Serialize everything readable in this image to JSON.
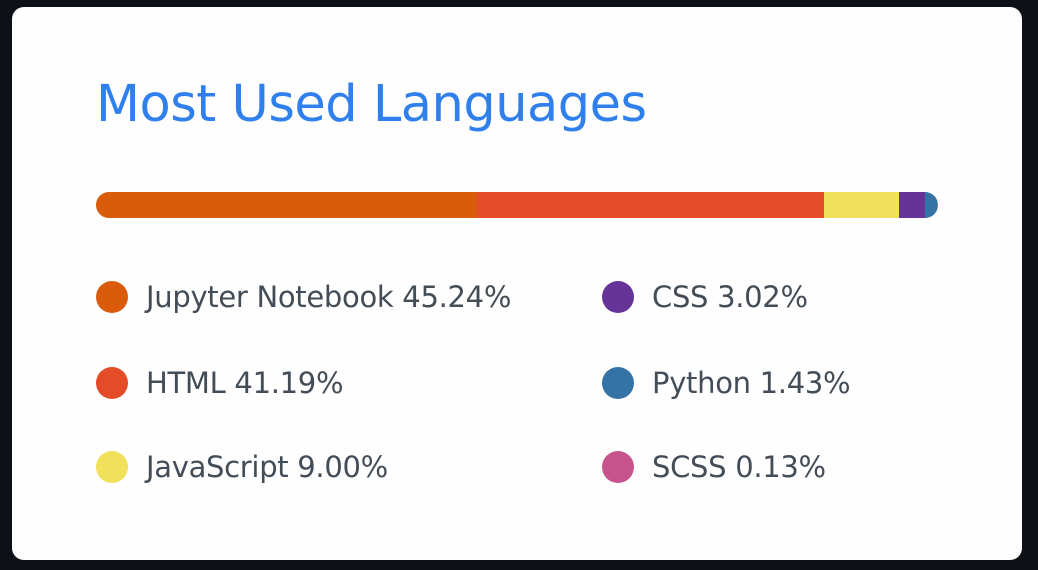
{
  "title": "Most Used Languages",
  "colors": {
    "title": "#2f80ed",
    "text": "#434d58",
    "card_background": "#fefefe",
    "page_background": "#0d1117"
  },
  "chart_data": {
    "type": "bar",
    "orientation": "horizontal-stacked-100",
    "title": "Most Used Languages",
    "unit": "%",
    "series": [
      {
        "name": "Jupyter Notebook",
        "value": 45.24,
        "label": "Jupyter Notebook 45.24%",
        "color": "#da5b0b"
      },
      {
        "name": "HTML",
        "value": 41.19,
        "label": "HTML 41.19%",
        "color": "#e34c26"
      },
      {
        "name": "JavaScript",
        "value": 9.0,
        "label": "JavaScript 9.00%",
        "color": "#f1e05a"
      },
      {
        "name": "CSS",
        "value": 3.02,
        "label": "CSS 3.02%",
        "color": "#663399"
      },
      {
        "name": "Python",
        "value": 1.43,
        "label": "Python 1.43%",
        "color": "#3572a5"
      },
      {
        "name": "SCSS",
        "value": 0.13,
        "label": "SCSS 0.13%",
        "color": "#c6538c"
      }
    ],
    "legend": "below, two columns"
  }
}
